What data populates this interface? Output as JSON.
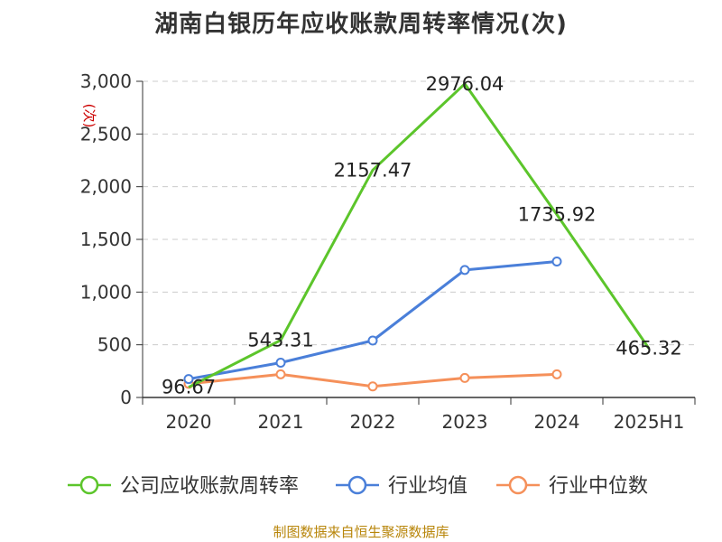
{
  "chart_data": {
    "type": "line",
    "title": "湖南白银历年应收账款周转率情况(次)",
    "ylabel": "(次)",
    "xlabel": "",
    "categories": [
      "2020",
      "2021",
      "2022",
      "2023",
      "2024",
      "2025H1"
    ],
    "ylim": [
      0,
      3000
    ],
    "yticks": [
      0,
      500,
      1000,
      1500,
      2000,
      2500,
      3000
    ],
    "ytick_labels": [
      "0",
      "500",
      "1,000",
      "1,500",
      "2,000",
      "2,500",
      "3,000"
    ],
    "grid": true,
    "legend_position": "bottom",
    "series": [
      {
        "name": "公司应收账款周转率",
        "color": "#5cc52b",
        "values": [
          96.67,
          543.31,
          2157.47,
          2976.04,
          1735.92,
          465.32
        ],
        "labels": [
          "96.67",
          "543.31",
          "2157.47",
          "2976.04",
          "1735.92",
          "465.32"
        ],
        "markers": false
      },
      {
        "name": "行业均值",
        "color": "#4a7fd9",
        "values": [
          175,
          330,
          540,
          1210,
          1290,
          null
        ],
        "markers": true
      },
      {
        "name": "行业中位数",
        "color": "#f5905a",
        "values": [
          130,
          220,
          105,
          185,
          220,
          null
        ],
        "markers": true
      }
    ]
  },
  "source": "制图数据来自恒生聚源数据库"
}
